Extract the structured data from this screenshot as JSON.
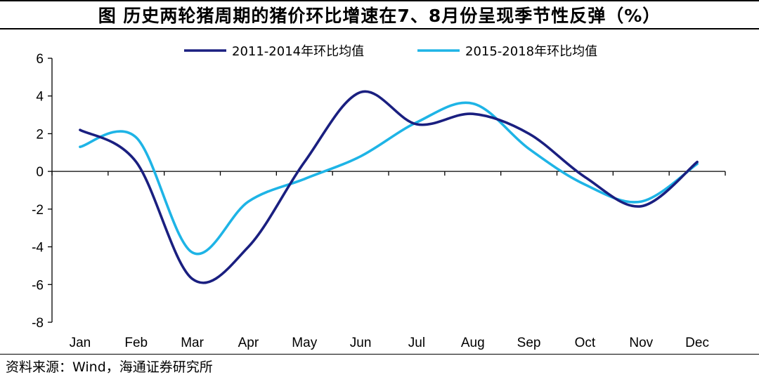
{
  "title": "图  历史两轮猪周期的猪价环比增速在7、8月份呈现季节性反弹（%）",
  "source": "资料来源：Wind，海通证券研究所",
  "chart_data": {
    "type": "line",
    "categories": [
      "Jan",
      "Feb",
      "Mar",
      "Apr",
      "May",
      "Jun",
      "Jul",
      "Aug",
      "Sep",
      "Oct",
      "Nov",
      "Dec"
    ],
    "ylim": [
      -8,
      6
    ],
    "yticks": [
      6,
      4,
      2,
      0,
      -2,
      -4,
      -6,
      -8
    ],
    "grid": false,
    "legend_position": "top",
    "series": [
      {
        "name": "2011-2014年环比均值",
        "color": "#1a1f80",
        "values": [
          2.2,
          0.5,
          -5.7,
          -4.0,
          0.5,
          4.2,
          2.5,
          3.05,
          2.0,
          -0.3,
          -1.85,
          0.5
        ]
      },
      {
        "name": "2015-2018年环比均值",
        "color": "#1eb4e6",
        "values": [
          1.3,
          1.8,
          -4.3,
          -1.6,
          -0.4,
          0.8,
          2.6,
          3.6,
          1.2,
          -0.7,
          -1.6,
          0.4
        ]
      }
    ]
  }
}
